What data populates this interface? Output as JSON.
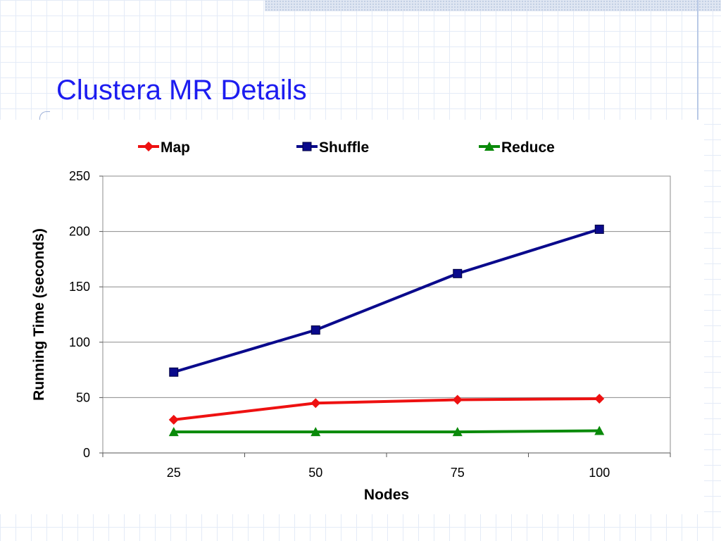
{
  "slide": {
    "title": "Clustera MR Details"
  },
  "chart_data": {
    "type": "line",
    "title": "",
    "xlabel": "Nodes",
    "ylabel": "Running Time (seconds)",
    "categories": [
      "25",
      "50",
      "75",
      "100"
    ],
    "ylim": [
      0,
      250
    ],
    "yticks": [
      0,
      50,
      100,
      150,
      200,
      250
    ],
    "grid": true,
    "legend_position": "top",
    "series": [
      {
        "name": "Map",
        "values": [
          30,
          45,
          48,
          49
        ],
        "color": "#ee1111",
        "marker": "diamond"
      },
      {
        "name": "Shuffle",
        "values": [
          73,
          111,
          162,
          202
        ],
        "color": "#0a0a8c",
        "marker": "square"
      },
      {
        "name": "Reduce",
        "values": [
          19,
          19,
          19,
          20
        ],
        "color": "#0a8a0a",
        "marker": "triangle"
      }
    ]
  }
}
